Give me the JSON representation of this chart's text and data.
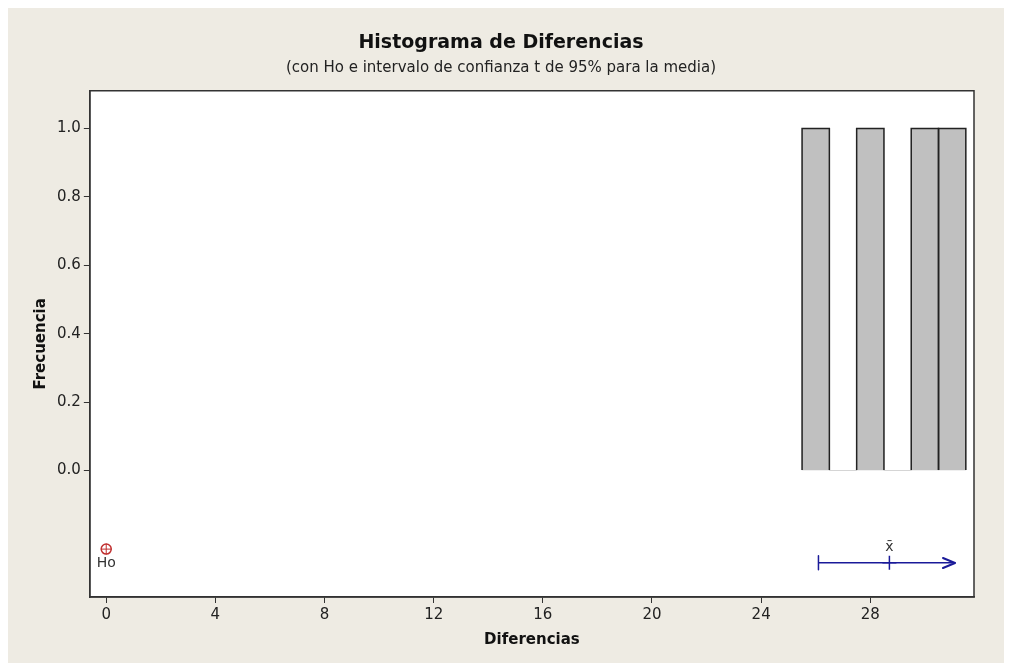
{
  "chart_data": {
    "type": "histogram",
    "title": "Histograma de Diferencias",
    "subtitle": "(con Ho e intervalo de confianza t de 95% para la media)",
    "xlabel": "Diferencias",
    "ylabel": "Frecuencia",
    "bins": [
      25.5,
      26.5,
      27.5,
      28.5,
      29.5,
      30.5,
      31.5
    ],
    "values": [
      1,
      0,
      1,
      0,
      1,
      1
    ],
    "color": "#c0c0c0",
    "series": [
      {
        "type": "scatter",
        "name": "x̄",
        "x": [
          28.7
        ],
        "values": [
          -0.27
        ],
        "xerrors": [
          [
            26.1,
            31.1
          ]
        ],
        "color": "#1a1a99",
        "marker": "cross"
      },
      {
        "type": "scatter",
        "name": "Ho",
        "x": [
          0
        ],
        "values": [
          -0.23
        ],
        "color": "#c03030",
        "marker": "circle"
      }
    ],
    "xlim": [
      -0.6,
      31.8
    ],
    "xticks": [
      0,
      4,
      8,
      12,
      16,
      20,
      24,
      28
    ],
    "ylim": [
      -0.37,
      1.11
    ],
    "yticks": [
      {
        "value": 0,
        "label": "0.0"
      },
      {
        "value": 0.2,
        "label": "0.2"
      },
      {
        "value": 0.4,
        "label": "0.4"
      },
      {
        "value": 0.6,
        "label": "0.6"
      },
      {
        "value": 0.8,
        "label": "0.8"
      },
      {
        "value": 1,
        "label": "1.0"
      }
    ],
    "grid": false,
    "legend": false
  }
}
